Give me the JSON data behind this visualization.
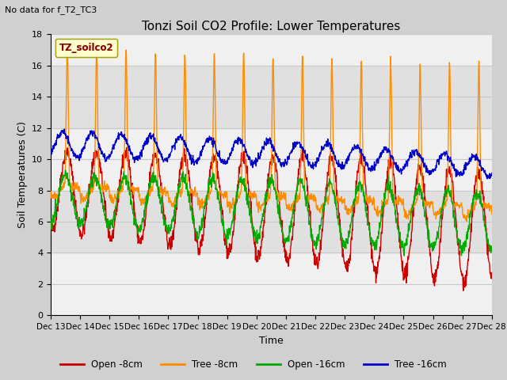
{
  "title": "Tonzi Soil CO2 Profile: Lower Temperatures",
  "subtitle": "No data for f_T2_TC3",
  "xlabel": "Time",
  "ylabel": "Soil Temperatures (C)",
  "ylim": [
    0,
    18
  ],
  "yticks": [
    0,
    2,
    4,
    6,
    8,
    10,
    12,
    14,
    16,
    18
  ],
  "xtick_labels": [
    "Dec 13",
    "Dec 14",
    "Dec 15",
    "Dec 16",
    "Dec 17",
    "Dec 18",
    "Dec 19",
    "Dec 20",
    "Dec 21",
    "Dec 22",
    "Dec 23",
    "Dec 24",
    "Dec 25",
    "Dec 26",
    "Dec 27",
    "Dec 28"
  ],
  "legend_label": "TZ_soilco2",
  "legend_entries": [
    "Open -8cm",
    "Tree -8cm",
    "Open -16cm",
    "Tree -16cm"
  ],
  "legend_colors": [
    "#cc0000",
    "#ff8c00",
    "#00aa00",
    "#0000cc"
  ],
  "fig_bg": "#ffffff",
  "plot_bg": "#f0f0f0",
  "band_color": "#e0e0e0",
  "grid_color": "#c8c8c8",
  "n_days": 15,
  "seed": 42
}
